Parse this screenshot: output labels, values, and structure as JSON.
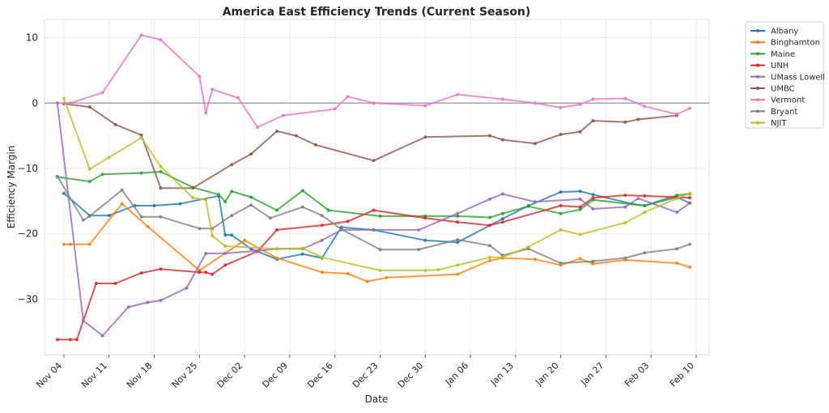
{
  "chart_data": {
    "type": "line",
    "title": "America East Efficiency Trends (Current Season)",
    "xlabel": "Date",
    "ylabel": "Efficiency Margin",
    "x_axis": {
      "type": "date",
      "range": [
        "2024-11-01",
        "2025-02-12"
      ],
      "ticks": [
        {
          "date": "2024-11-04",
          "label": "Nov 04"
        },
        {
          "date": "2024-11-11",
          "label": "Nov 11"
        },
        {
          "date": "2024-11-18",
          "label": "Nov 18"
        },
        {
          "date": "2024-11-25",
          "label": "Nov 25"
        },
        {
          "date": "2024-12-02",
          "label": "Dec 02"
        },
        {
          "date": "2024-12-09",
          "label": "Dec 09"
        },
        {
          "date": "2024-12-16",
          "label": "Dec 16"
        },
        {
          "date": "2024-12-23",
          "label": "Dec 23"
        },
        {
          "date": "2024-12-30",
          "label": "Dec 30"
        },
        {
          "date": "2025-01-06",
          "label": "Jan 06"
        },
        {
          "date": "2025-01-13",
          "label": "Jan 13"
        },
        {
          "date": "2025-01-20",
          "label": "Jan 20"
        },
        {
          "date": "2025-01-27",
          "label": "Jan 27"
        },
        {
          "date": "2025-02-03",
          "label": "Feb 03"
        },
        {
          "date": "2025-02-10",
          "label": "Feb 10"
        }
      ]
    },
    "ylim": [
      -38.5,
      12.8
    ],
    "y_ticks": [
      10,
      0,
      -10,
      -20,
      -30
    ],
    "y_tick_labels": [
      "10",
      "0",
      "−10",
      "−20",
      "−30"
    ],
    "reference_line": {
      "y": 0,
      "color": "#808080"
    },
    "grid": true,
    "legend": "outside-top-right",
    "series": [
      {
        "name": "Albany",
        "color": "#1f77b4",
        "points": [
          [
            "2024-11-04",
            -13.8
          ],
          [
            "2024-11-08",
            -17.2
          ],
          [
            "2024-11-11",
            -17.2
          ],
          [
            "2024-11-15",
            -15.7
          ],
          [
            "2024-11-18",
            -15.7
          ],
          [
            "2024-11-22",
            -15.4
          ],
          [
            "2024-11-28",
            -14.2
          ],
          [
            "2024-11-29",
            -20.2
          ],
          [
            "2024-11-30",
            -20.2
          ],
          [
            "2024-12-03",
            -22.3
          ],
          [
            "2024-12-07",
            -23.9
          ],
          [
            "2024-12-11",
            -23.1
          ],
          [
            "2024-12-14",
            -23.7
          ],
          [
            "2024-12-17",
            -19.0
          ],
          [
            "2024-12-22",
            -19.4
          ],
          [
            "2024-12-30",
            -21.0
          ],
          [
            "2025-01-04",
            -21.3
          ],
          [
            "2025-01-11",
            -17.7
          ],
          [
            "2025-01-15",
            -15.7
          ],
          [
            "2025-01-20",
            -13.6
          ],
          [
            "2025-01-23",
            -13.5
          ],
          [
            "2025-01-25",
            -14.0
          ],
          [
            "2025-01-31",
            -15.4
          ],
          [
            "2025-02-02",
            -15.7
          ],
          [
            "2025-02-07",
            -14.4
          ],
          [
            "2025-02-09",
            -15.3
          ]
        ]
      },
      {
        "name": "Binghamton",
        "color": "#ff7f0e",
        "points": [
          [
            "2024-11-04",
            -21.6
          ],
          [
            "2024-11-05",
            -21.6
          ],
          [
            "2024-11-08",
            -21.6
          ],
          [
            "2024-11-13",
            -15.4
          ],
          [
            "2024-11-17",
            -18.9
          ],
          [
            "2024-11-25",
            -25.6
          ],
          [
            "2024-12-02",
            -21.0
          ],
          [
            "2024-12-07",
            -23.7
          ],
          [
            "2024-12-14",
            -25.9
          ],
          [
            "2024-12-18",
            -26.1
          ],
          [
            "2024-12-21",
            -27.3
          ],
          [
            "2024-12-24",
            -26.7
          ],
          [
            "2025-01-04",
            -26.2
          ],
          [
            "2025-01-09",
            -24.1
          ],
          [
            "2025-01-11",
            -23.7
          ],
          [
            "2025-01-16",
            -23.9
          ],
          [
            "2025-01-20",
            -24.8
          ],
          [
            "2025-01-23",
            -23.8
          ],
          [
            "2025-01-25",
            -24.6
          ],
          [
            "2025-01-30",
            -24.0
          ],
          [
            "2025-02-07",
            -24.5
          ],
          [
            "2025-02-09",
            -25.1
          ]
        ]
      },
      {
        "name": "Maine",
        "color": "#2ca02c",
        "points": [
          [
            "2024-11-03",
            -11.3
          ],
          [
            "2024-11-08",
            -12.0
          ],
          [
            "2024-11-10",
            -10.9
          ],
          [
            "2024-11-16",
            -10.7
          ],
          [
            "2024-11-19",
            -10.5
          ],
          [
            "2024-11-24",
            -12.9
          ],
          [
            "2024-11-28",
            -14.0
          ],
          [
            "2024-11-29",
            -15.1
          ],
          [
            "2024-11-30",
            -13.5
          ],
          [
            "2024-12-03",
            -14.4
          ],
          [
            "2024-12-07",
            -16.4
          ],
          [
            "2024-12-11",
            -13.4
          ],
          [
            "2024-12-15",
            -16.4
          ],
          [
            "2024-12-23",
            -17.3
          ],
          [
            "2024-12-30",
            -17.3
          ],
          [
            "2025-01-04",
            -17.3
          ],
          [
            "2025-01-09",
            -17.5
          ],
          [
            "2025-01-11",
            -16.9
          ],
          [
            "2025-01-15",
            -15.8
          ],
          [
            "2025-01-20",
            -16.9
          ],
          [
            "2025-01-23",
            -16.3
          ],
          [
            "2025-01-25",
            -14.8
          ],
          [
            "2025-02-02",
            -15.7
          ],
          [
            "2025-02-07",
            -14.1
          ],
          [
            "2025-02-09",
            -13.9
          ]
        ]
      },
      {
        "name": "UNH",
        "color": "#d62728",
        "points": [
          [
            "2024-11-03",
            -36.2
          ],
          [
            "2024-11-05",
            -36.2
          ],
          [
            "2024-11-06",
            -36.2
          ],
          [
            "2024-11-09",
            -27.6
          ],
          [
            "2024-11-12",
            -27.6
          ],
          [
            "2024-11-16",
            -26.0
          ],
          [
            "2024-11-19",
            -25.4
          ],
          [
            "2024-11-25",
            -25.9
          ],
          [
            "2024-11-26",
            -25.9
          ],
          [
            "2024-11-27",
            -26.2
          ],
          [
            "2024-11-29",
            -24.8
          ],
          [
            "2024-12-04",
            -22.7
          ],
          [
            "2024-12-07",
            -19.4
          ],
          [
            "2024-12-14",
            -18.7
          ],
          [
            "2024-12-18",
            -18.1
          ],
          [
            "2024-12-22",
            -16.4
          ],
          [
            "2024-12-30",
            -17.6
          ],
          [
            "2025-01-04",
            -18.2
          ],
          [
            "2025-01-09",
            -18.7
          ],
          [
            "2025-01-11",
            -18.2
          ],
          [
            "2025-01-20",
            -15.7
          ],
          [
            "2025-01-23",
            -15.9
          ],
          [
            "2025-01-25",
            -14.5
          ],
          [
            "2025-01-30",
            -14.1
          ],
          [
            "2025-02-02",
            -14.2
          ],
          [
            "2025-02-07",
            -14.4
          ],
          [
            "2025-02-09",
            -14.5
          ]
        ]
      },
      {
        "name": "UMass Lowell",
        "color": "#9467bd",
        "points": [
          [
            "2024-11-03",
            0.0
          ],
          [
            "2024-11-07",
            -33.3
          ],
          [
            "2024-11-10",
            -35.6
          ],
          [
            "2024-11-14",
            -31.2
          ],
          [
            "2024-11-17",
            -30.5
          ],
          [
            "2024-11-19",
            -30.2
          ],
          [
            "2024-11-23",
            -28.3
          ],
          [
            "2024-11-26",
            -23.0
          ],
          [
            "2024-11-29",
            -23.0
          ],
          [
            "2024-12-04",
            -22.6
          ],
          [
            "2024-12-07",
            -22.3
          ],
          [
            "2024-12-11",
            -22.3
          ],
          [
            "2024-12-14",
            -21.0
          ],
          [
            "2024-12-17",
            -19.4
          ],
          [
            "2024-12-22",
            -19.4
          ],
          [
            "2024-12-29",
            -19.4
          ],
          [
            "2025-01-04",
            -16.9
          ],
          [
            "2025-01-09",
            -14.7
          ],
          [
            "2025-01-11",
            -13.9
          ],
          [
            "2025-01-16",
            -15.1
          ],
          [
            "2025-01-23",
            -14.7
          ],
          [
            "2025-01-25",
            -16.2
          ],
          [
            "2025-01-30",
            -15.9
          ],
          [
            "2025-02-01",
            -14.6
          ],
          [
            "2025-02-07",
            -16.7
          ],
          [
            "2025-02-09",
            -15.3
          ]
        ]
      },
      {
        "name": "UMBC",
        "color": "#8c564b",
        "points": [
          [
            "2024-11-04",
            -0.1
          ],
          [
            "2024-11-08",
            -0.6
          ],
          [
            "2024-11-12",
            -3.3
          ],
          [
            "2024-11-16",
            -4.9
          ],
          [
            "2024-11-19",
            -13.0
          ],
          [
            "2024-11-24",
            -13.0
          ],
          [
            "2024-11-30",
            -9.4
          ],
          [
            "2024-12-03",
            -7.8
          ],
          [
            "2024-12-07",
            -4.3
          ],
          [
            "2024-12-10",
            -5.0
          ],
          [
            "2024-12-13",
            -6.4
          ],
          [
            "2024-12-22",
            -8.8
          ],
          [
            "2024-12-30",
            -5.2
          ],
          [
            "2025-01-09",
            -5.0
          ],
          [
            "2025-01-11",
            -5.6
          ],
          [
            "2025-01-16",
            -6.2
          ],
          [
            "2025-01-20",
            -4.8
          ],
          [
            "2025-01-23",
            -4.4
          ],
          [
            "2025-01-25",
            -2.7
          ],
          [
            "2025-01-30",
            -2.9
          ],
          [
            "2025-02-01",
            -2.5
          ],
          [
            "2025-02-07",
            -1.9
          ]
        ]
      },
      {
        "name": "Vermont",
        "color": "#e377c2",
        "points": [
          [
            "2024-11-04",
            0.0
          ],
          [
            "2024-11-05",
            0.0
          ],
          [
            "2024-11-10",
            1.6
          ],
          [
            "2024-11-16",
            10.4
          ],
          [
            "2024-11-19",
            9.7
          ],
          [
            "2024-11-25",
            4.1
          ],
          [
            "2024-11-26",
            -1.5
          ],
          [
            "2024-11-27",
            2.1
          ],
          [
            "2024-12-01",
            0.8
          ],
          [
            "2024-12-04",
            -3.7
          ],
          [
            "2024-12-08",
            -1.9
          ],
          [
            "2024-12-16",
            -0.9
          ],
          [
            "2024-12-18",
            1.0
          ],
          [
            "2024-12-22",
            0.0
          ],
          [
            "2024-12-30",
            -0.4
          ],
          [
            "2025-01-04",
            1.3
          ],
          [
            "2025-01-11",
            0.6
          ],
          [
            "2025-01-16",
            0.0
          ],
          [
            "2025-01-20",
            -0.7
          ],
          [
            "2025-01-23",
            -0.2
          ],
          [
            "2025-01-25",
            0.6
          ],
          [
            "2025-01-30",
            0.7
          ],
          [
            "2025-02-02",
            -0.5
          ],
          [
            "2025-02-07",
            -1.7
          ],
          [
            "2025-02-09",
            -0.8
          ]
        ]
      },
      {
        "name": "Bryant",
        "color": "#7f7f7f",
        "points": [
          [
            "2024-11-03",
            -11.2
          ],
          [
            "2024-11-07",
            -17.9
          ],
          [
            "2024-11-08",
            -17.3
          ],
          [
            "2024-11-13",
            -13.3
          ],
          [
            "2024-11-16",
            -17.4
          ],
          [
            "2024-11-19",
            -17.4
          ],
          [
            "2024-11-25",
            -19.2
          ],
          [
            "2024-11-27",
            -19.2
          ],
          [
            "2024-11-30",
            -17.2
          ],
          [
            "2024-12-03",
            -15.6
          ],
          [
            "2024-12-06",
            -17.6
          ],
          [
            "2024-12-11",
            -15.9
          ],
          [
            "2024-12-14",
            -17.2
          ],
          [
            "2024-12-17",
            -19.3
          ],
          [
            "2024-12-23",
            -22.4
          ],
          [
            "2024-12-29",
            -22.4
          ],
          [
            "2025-01-04",
            -20.9
          ],
          [
            "2025-01-09",
            -21.8
          ],
          [
            "2025-01-11",
            -23.3
          ],
          [
            "2025-01-15",
            -22.3
          ],
          [
            "2025-01-20",
            -24.5
          ],
          [
            "2025-01-25",
            -24.2
          ],
          [
            "2025-01-30",
            -23.7
          ],
          [
            "2025-02-02",
            -22.9
          ],
          [
            "2025-02-07",
            -22.3
          ],
          [
            "2025-02-09",
            -21.6
          ]
        ]
      },
      {
        "name": "NJIT",
        "color": "#bcbd22",
        "points": [
          [
            "2024-11-04",
            0.7
          ],
          [
            "2024-11-08",
            -10.1
          ],
          [
            "2024-11-11",
            -8.3
          ],
          [
            "2024-11-16",
            -5.3
          ],
          [
            "2024-11-19",
            -9.7
          ],
          [
            "2024-11-24",
            -14.5
          ],
          [
            "2024-11-26",
            -14.8
          ],
          [
            "2024-11-27",
            -20.3
          ],
          [
            "2024-11-29",
            -21.9
          ],
          [
            "2024-12-07",
            -22.3
          ],
          [
            "2024-12-11",
            -22.2
          ],
          [
            "2024-12-14",
            -23.6
          ],
          [
            "2024-12-23",
            -25.6
          ],
          [
            "2024-12-30",
            -25.6
          ],
          [
            "2025-01-01",
            -25.5
          ],
          [
            "2025-01-04",
            -24.8
          ],
          [
            "2025-01-09",
            -23.6
          ],
          [
            "2025-01-11",
            -23.6
          ],
          [
            "2025-01-15",
            -22.0
          ],
          [
            "2025-01-20",
            -19.4
          ],
          [
            "2025-01-23",
            -20.1
          ],
          [
            "2025-01-30",
            -18.3
          ],
          [
            "2025-02-02",
            -16.7
          ],
          [
            "2025-02-07",
            -14.6
          ],
          [
            "2025-02-09",
            -13.8
          ]
        ]
      }
    ]
  }
}
